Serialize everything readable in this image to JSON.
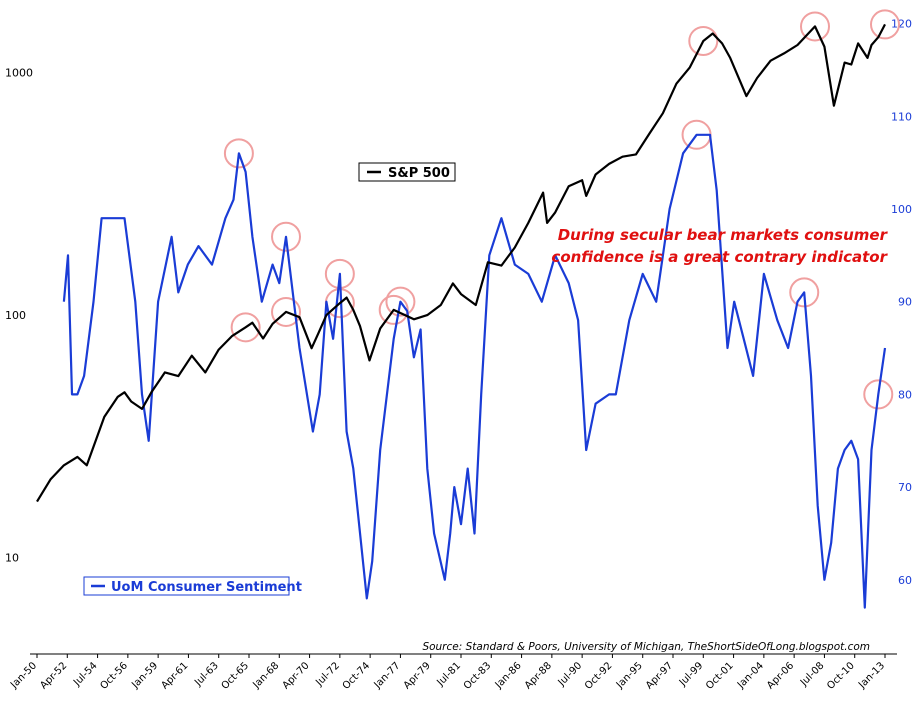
{
  "chart_data": {
    "type": "line",
    "annotation_lines": [
      "During secular bear markets consumer",
      "confidence is a great contrary indicator"
    ],
    "source": "Source: Standard & Poors, University of Michigan, TheShortSideOfLong.blogspot.com",
    "x_ticks": [
      "Jan-50",
      "Apr-52",
      "Jul-54",
      "Oct-56",
      "Jan-59",
      "Apr-61",
      "Jul-63",
      "Oct-65",
      "Jan-68",
      "Apr-70",
      "Jul-72",
      "Oct-74",
      "Jan-77",
      "Apr-79",
      "Jul-81",
      "Oct-83",
      "Jan-86",
      "Apr-88",
      "Jul-90",
      "Oct-92",
      "Jan-95",
      "Apr-97",
      "Jul-99",
      "Oct-01",
      "Jan-04",
      "Apr-06",
      "Jul-08",
      "Oct-10",
      "Jan-13"
    ],
    "x_range": [
      1950.0,
      2013.0
    ],
    "left_axis": {
      "scale": "log",
      "ticks": [
        10,
        100,
        1000
      ],
      "range": [
        4,
        1900
      ]
    },
    "right_axis": {
      "scale": "linear",
      "ticks": [
        60,
        70,
        80,
        90,
        100,
        110,
        120
      ],
      "range": [
        52,
        122
      ]
    },
    "legend": [
      "upper-center",
      "lower-left"
    ],
    "series": [
      {
        "name": "S&P 500",
        "axis": "left",
        "color": "#000000",
        "x": [
          1950.0,
          1951.0,
          1952.0,
          1953.0,
          1953.7,
          1955.0,
          1956.0,
          1956.5,
          1957.0,
          1957.8,
          1958.5,
          1959.5,
          1960.5,
          1961.5,
          1962.5,
          1963.5,
          1964.5,
          1965.5,
          1966.0,
          1966.8,
          1967.5,
          1968.5,
          1969.5,
          1970.4,
          1970.9,
          1971.5,
          1972.5,
          1973.0,
          1973.5,
          1974.0,
          1974.7,
          1975.5,
          1976.5,
          1977.0,
          1978.0,
          1979.0,
          1980.0,
          1980.9,
          1981.5,
          1982.6,
          1983.5,
          1984.5,
          1985.5,
          1986.5,
          1987.6,
          1987.9,
          1988.5,
          1989.5,
          1990.5,
          1990.8,
          1991.5,
          1992.5,
          1993.5,
          1994.5,
          1995.5,
          1996.5,
          1997.5,
          1998.5,
          1999.5,
          2000.2,
          2000.9,
          2001.5,
          2002.7,
          2003.5,
          2004.5,
          2005.5,
          2006.5,
          2007.8,
          2008.5,
          2009.2,
          2010.0,
          2010.5,
          2011.0,
          2011.7,
          2012.0,
          2012.5,
          2013.0
        ],
        "y": [
          17,
          21,
          24,
          26,
          24,
          38,
          46,
          48,
          44,
          41,
          48,
          58,
          56,
          68,
          58,
          72,
          82,
          89,
          93,
          80,
          92,
          103,
          98,
          73,
          84,
          100,
          112,
          118,
          105,
          90,
          65,
          88,
          105,
          102,
          96,
          100,
          110,
          135,
          122,
          110,
          165,
          160,
          190,
          240,
          320,
          240,
          265,
          340,
          360,
          310,
          380,
          420,
          450,
          460,
          560,
          680,
          900,
          1050,
          1350,
          1450,
          1320,
          1150,
          800,
          950,
          1120,
          1200,
          1300,
          1550,
          1280,
          730,
          1100,
          1080,
          1320,
          1150,
          1300,
          1400,
          1580
        ]
      },
      {
        "name": "UoM Consumer Sentiment",
        "axis": "right",
        "color": "#1a3cd6",
        "x": [
          1952.0,
          1952.3,
          1952.6,
          1953.0,
          1953.5,
          1954.2,
          1954.8,
          1955.5,
          1956.5,
          1957.3,
          1957.8,
          1958.3,
          1959.0,
          1960.0,
          1960.5,
          1961.2,
          1962.0,
          1963.0,
          1964.0,
          1964.6,
          1965.0,
          1965.5,
          1966.0,
          1966.7,
          1967.5,
          1968.0,
          1968.5,
          1969.5,
          1970.5,
          1971.0,
          1971.5,
          1972.0,
          1972.5,
          1973.0,
          1973.5,
          1974.5,
          1974.9,
          1975.5,
          1976.5,
          1977.0,
          1977.5,
          1978.0,
          1978.5,
          1979.0,
          1979.5,
          1980.3,
          1980.7,
          1981.0,
          1981.5,
          1982.0,
          1982.5,
          1983.0,
          1983.6,
          1984.5,
          1985.5,
          1986.5,
          1987.5,
          1988.5,
          1989.5,
          1990.2,
          1990.8,
          1991.5,
          1992.5,
          1993.0,
          1994.0,
          1995.0,
          1996.0,
          1997.0,
          1998.0,
          1999.0,
          1999.5,
          2000.0,
          2000.5,
          2001.3,
          2001.8,
          2002.5,
          2003.2,
          2004.0,
          2005.0,
          2005.8,
          2006.5,
          2007.0,
          2007.5,
          2008.0,
          2008.5,
          2009.0,
          2009.5,
          2010.0,
          2010.5,
          2011.0,
          2011.5,
          2012.0,
          2012.5,
          2013.0
        ],
        "y": [
          90,
          95,
          80,
          80,
          82,
          90,
          99,
          99,
          99,
          90,
          80,
          75,
          90,
          97,
          91,
          94,
          96,
          94,
          99,
          101,
          106,
          104,
          97,
          90,
          94,
          92,
          97,
          85,
          76,
          80,
          90,
          86,
          93,
          76,
          72,
          58,
          62,
          74,
          86,
          90,
          89,
          84,
          87,
          72,
          65,
          60,
          65,
          70,
          66,
          72,
          65,
          80,
          95,
          99,
          94,
          93,
          90,
          95,
          92,
          88,
          74,
          79,
          80,
          80,
          88,
          93,
          90,
          100,
          106,
          108,
          108,
          108,
          102,
          85,
          90,
          86,
          82,
          93,
          88,
          85,
          90,
          91,
          82,
          68,
          60,
          64,
          72,
          74,
          75,
          73,
          57,
          74,
          80,
          85
        ]
      }
    ]
  }
}
